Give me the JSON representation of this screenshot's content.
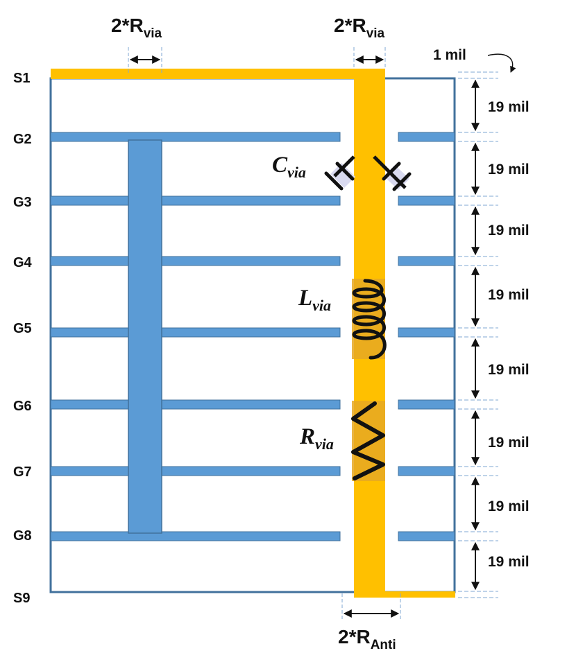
{
  "layers": [
    "S1",
    "G2",
    "G3",
    "G4",
    "G5",
    "G6",
    "G7",
    "G8",
    "S9"
  ],
  "spacing_labels": [
    "19  mil",
    "19 mil",
    "19 mil",
    "19 mil",
    "19 mil",
    "19 mil",
    "19 mil",
    "19 mil"
  ],
  "plating_label": "1  mil",
  "ground_via_dim": {
    "main": "2*R",
    "sub": "via"
  },
  "signal_via_dim": {
    "main": "2*R",
    "sub": "via"
  },
  "antipad_dim": {
    "main": "2*R",
    "sub": "Anti"
  },
  "parasitics": {
    "capacitance": {
      "symbol": "C",
      "sub": "via"
    },
    "inductance": {
      "symbol": "L",
      "sub": "via"
    },
    "resistance": {
      "symbol": "R",
      "sub": "via"
    }
  },
  "colors": {
    "signal_via": "#FFC000",
    "ground_plane": "#5B9BD5",
    "ground_plane_edge": "#41719C",
    "outline": "#41719C",
    "cap_plate_halo": "#D9DAF0"
  }
}
